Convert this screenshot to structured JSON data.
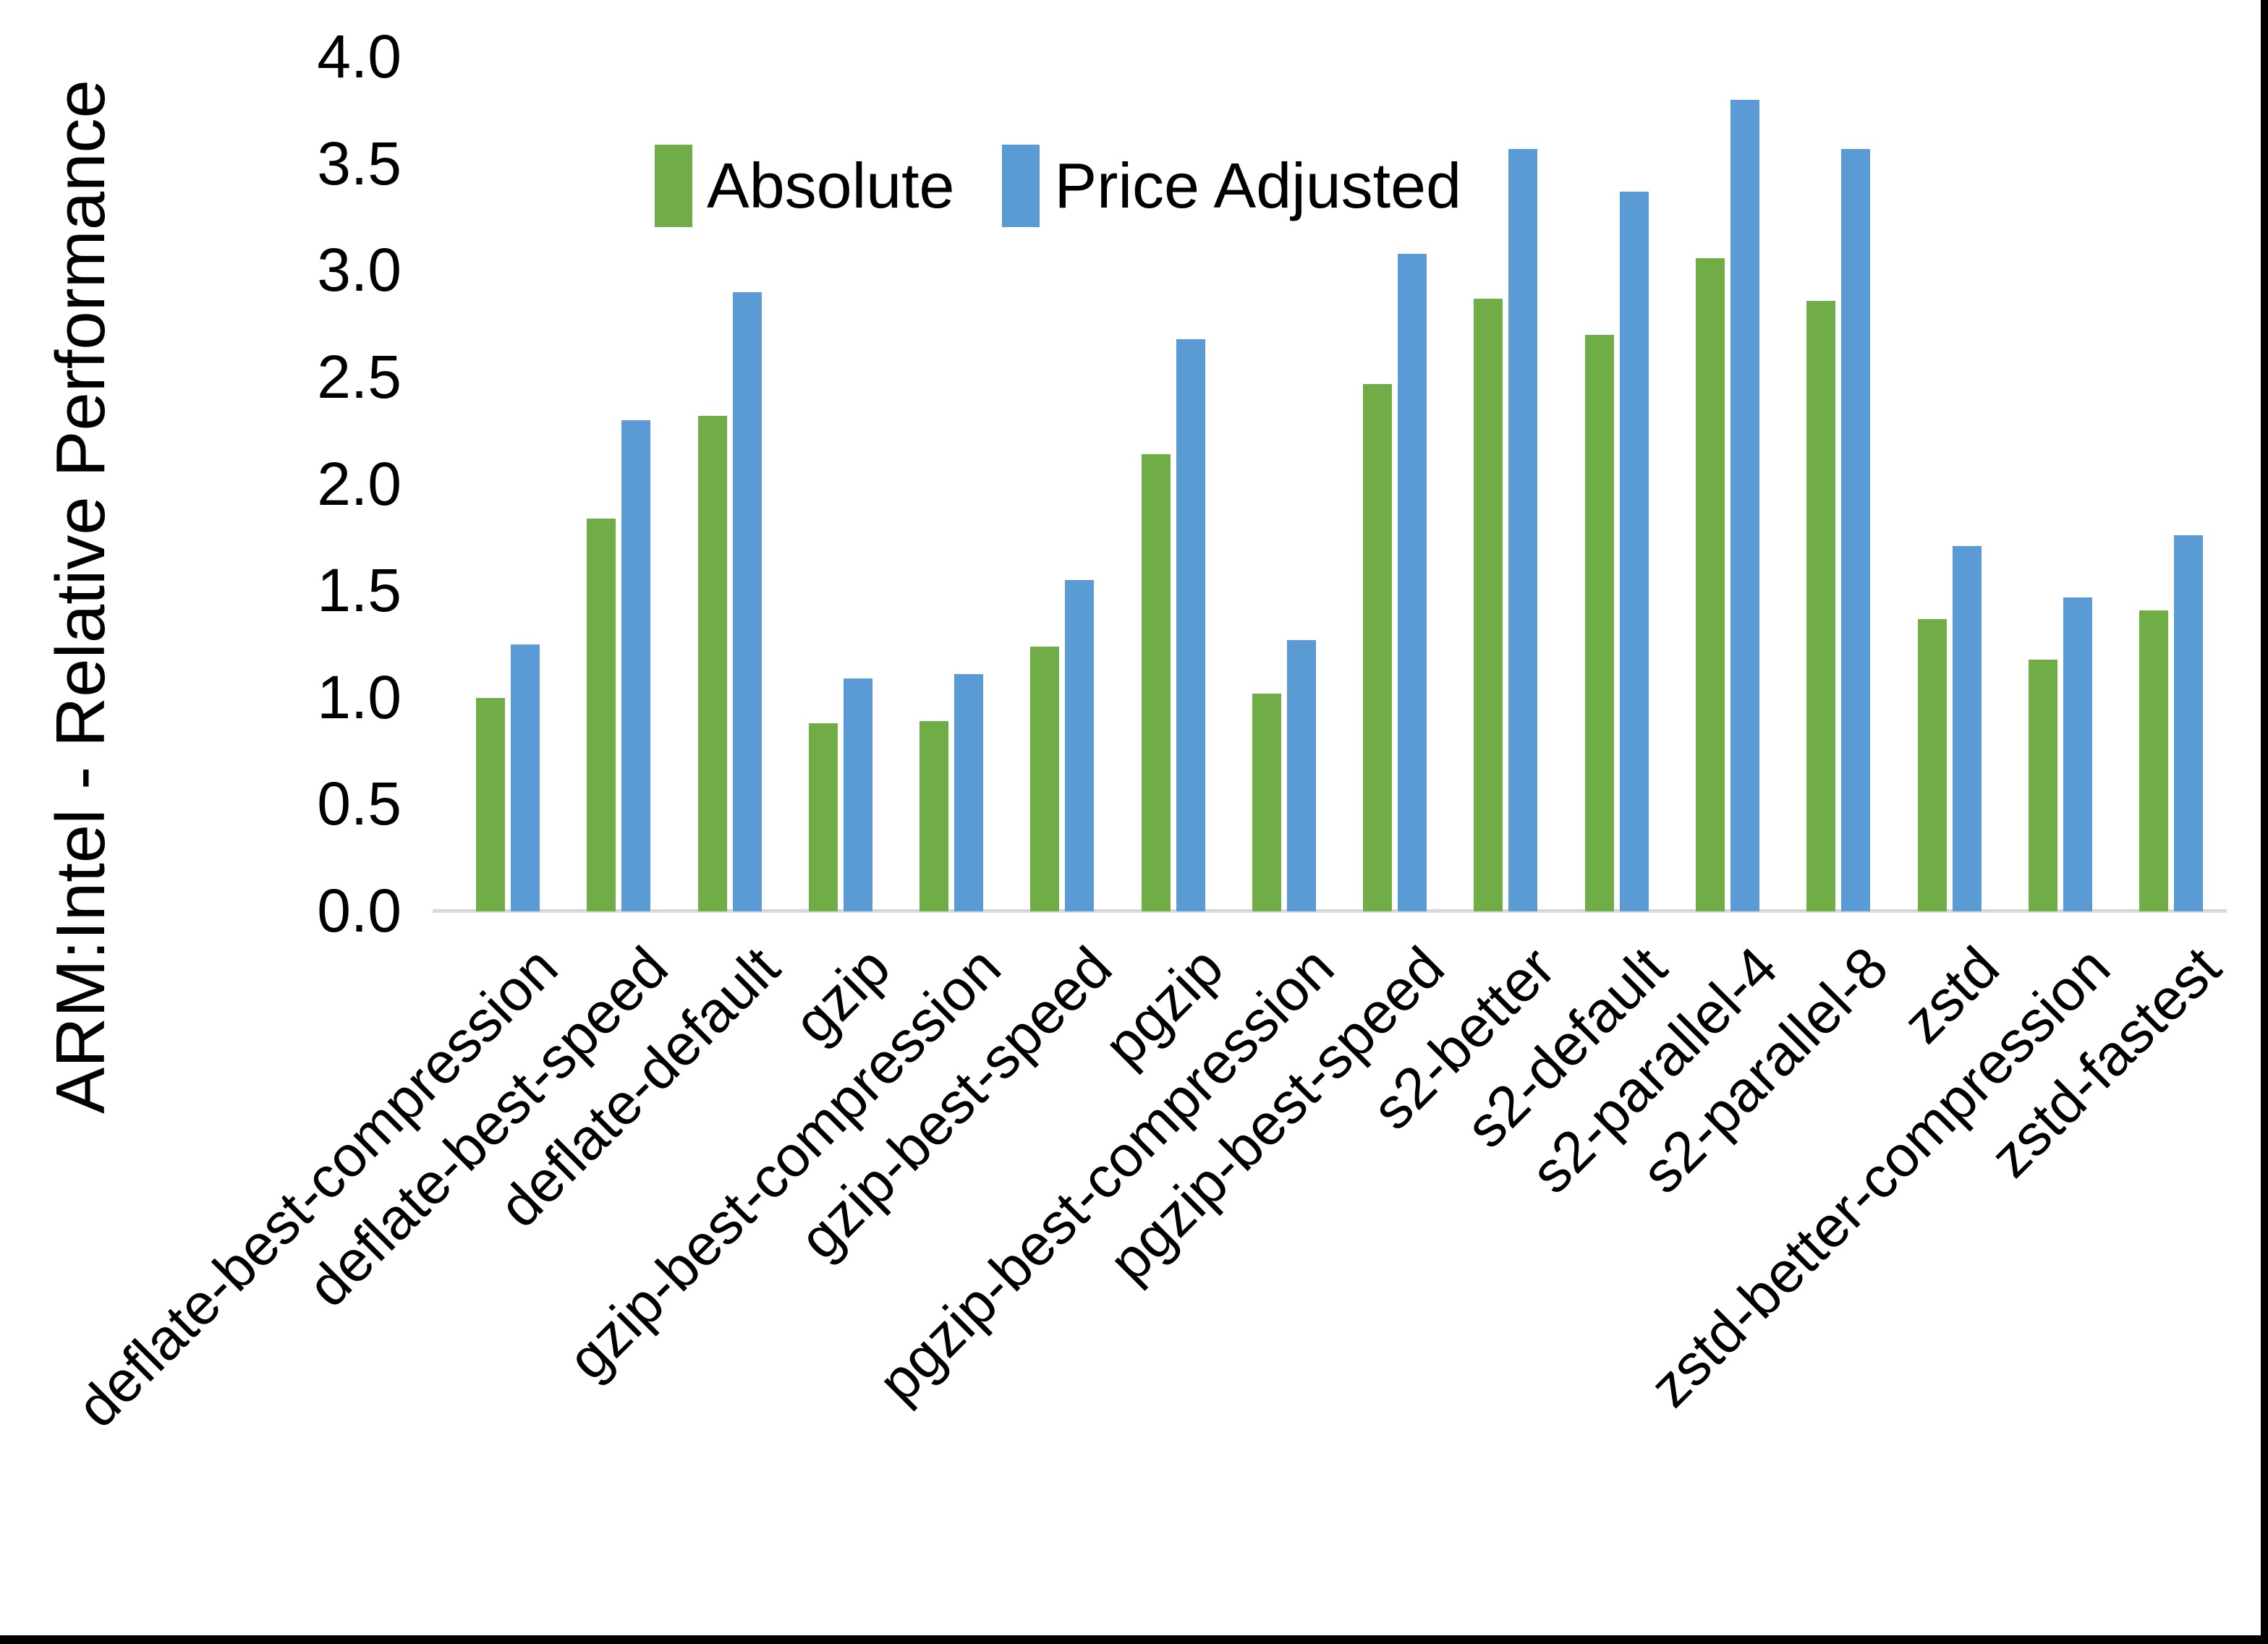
{
  "chart_data": {
    "type": "bar",
    "title": "",
    "xlabel": "",
    "ylabel": "ARM:Intel - Relative Performance",
    "ylim": [
      0.0,
      4.0
    ],
    "ytick_step": 0.5,
    "yticks": [
      "0.0",
      "0.5",
      "1.0",
      "1.5",
      "2.0",
      "2.5",
      "3.0",
      "3.5",
      "4.0"
    ],
    "grid": false,
    "legend_position": "top-center",
    "categories": [
      "deflate-best-compression",
      "deflate-best-speed",
      "deflate-default",
      "gzip",
      "gzip-best-compression",
      "gzip-best-speed",
      "pgzip",
      "pgzip-best-compression",
      "pgzip-best-speed",
      "s2-better",
      "s2-default",
      "s2-parallel-4",
      "s2-parallel-8",
      "zstd",
      "zstd-better-compression",
      "zstd-fastest"
    ],
    "series": [
      {
        "name": "Absolute",
        "color": "#70AD47",
        "values": [
          1.0,
          1.84,
          2.32,
          0.88,
          0.89,
          1.24,
          2.14,
          1.02,
          2.47,
          2.87,
          2.7,
          3.06,
          2.86,
          1.37,
          1.18,
          1.41
        ]
      },
      {
        "name": "Price Adjusted",
        "color": "#5B9BD5",
        "values": [
          1.25,
          2.3,
          2.9,
          1.09,
          1.11,
          1.55,
          2.68,
          1.27,
          3.08,
          3.57,
          3.37,
          3.8,
          3.57,
          1.71,
          1.47,
          1.76
        ]
      }
    ]
  },
  "colors": {
    "background": "#FFFFFF",
    "axis_line": "#D9D9D9",
    "text": "#000000",
    "frame": "#000000"
  }
}
